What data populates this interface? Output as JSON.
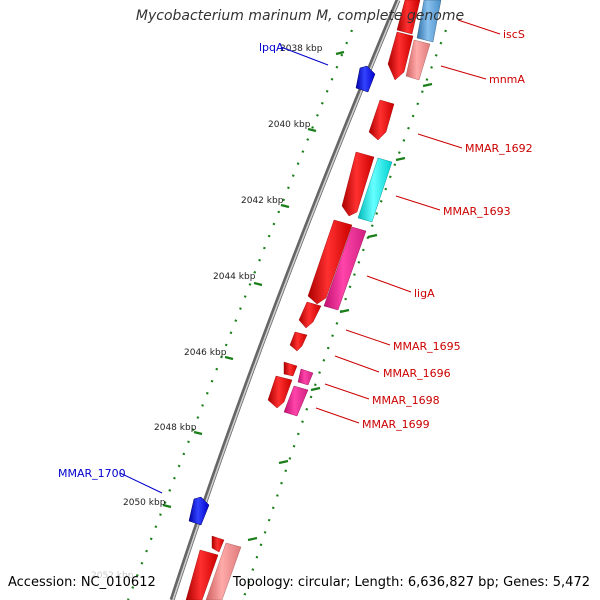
{
  "title": "Mycobacterium marinum M, complete genome",
  "footer": {
    "accession": "Accession: NC_010612",
    "summary": "Topology: circular; Length: 6,636,827 bp; Genes: 5,472"
  },
  "colors": {
    "backbone": "#777777",
    "tick": "#1a7f1a",
    "forward_label": "#0000cc",
    "reverse_label": "#cc0000",
    "gene_red": "#ee0000",
    "gene_pink": "#ee2288",
    "gene_salmon": "#ee8888",
    "gene_cyan": "#00eeee",
    "gene_blue": "#0000dd",
    "gene_steel": "#4a90c8"
  },
  "ticks": [
    {
      "label": "2038 kbp"
    },
    {
      "label": "2040 kbp"
    },
    {
      "label": "2042 kbp"
    },
    {
      "label": "2044 kbp"
    },
    {
      "label": "2046 kbp"
    },
    {
      "label": "2048 kbp"
    },
    {
      "label": "2050 kbp"
    },
    {
      "label": "2052 kbp"
    }
  ],
  "labels": [
    {
      "text": "lpqA",
      "strand": "forward"
    },
    {
      "text": "MMAR_1700",
      "strand": "forward"
    },
    {
      "text": "iscS",
      "strand": "reverse"
    },
    {
      "text": "mnmA",
      "strand": "reverse"
    },
    {
      "text": "MMAR_1692",
      "strand": "reverse"
    },
    {
      "text": "MMAR_1693",
      "strand": "reverse"
    },
    {
      "text": "ligA",
      "strand": "reverse"
    },
    {
      "text": "MMAR_1695",
      "strand": "reverse"
    },
    {
      "text": "MMAR_1696",
      "strand": "reverse"
    },
    {
      "text": "MMAR_1698",
      "strand": "reverse"
    },
    {
      "text": "MMAR_1699",
      "strand": "reverse"
    }
  ]
}
